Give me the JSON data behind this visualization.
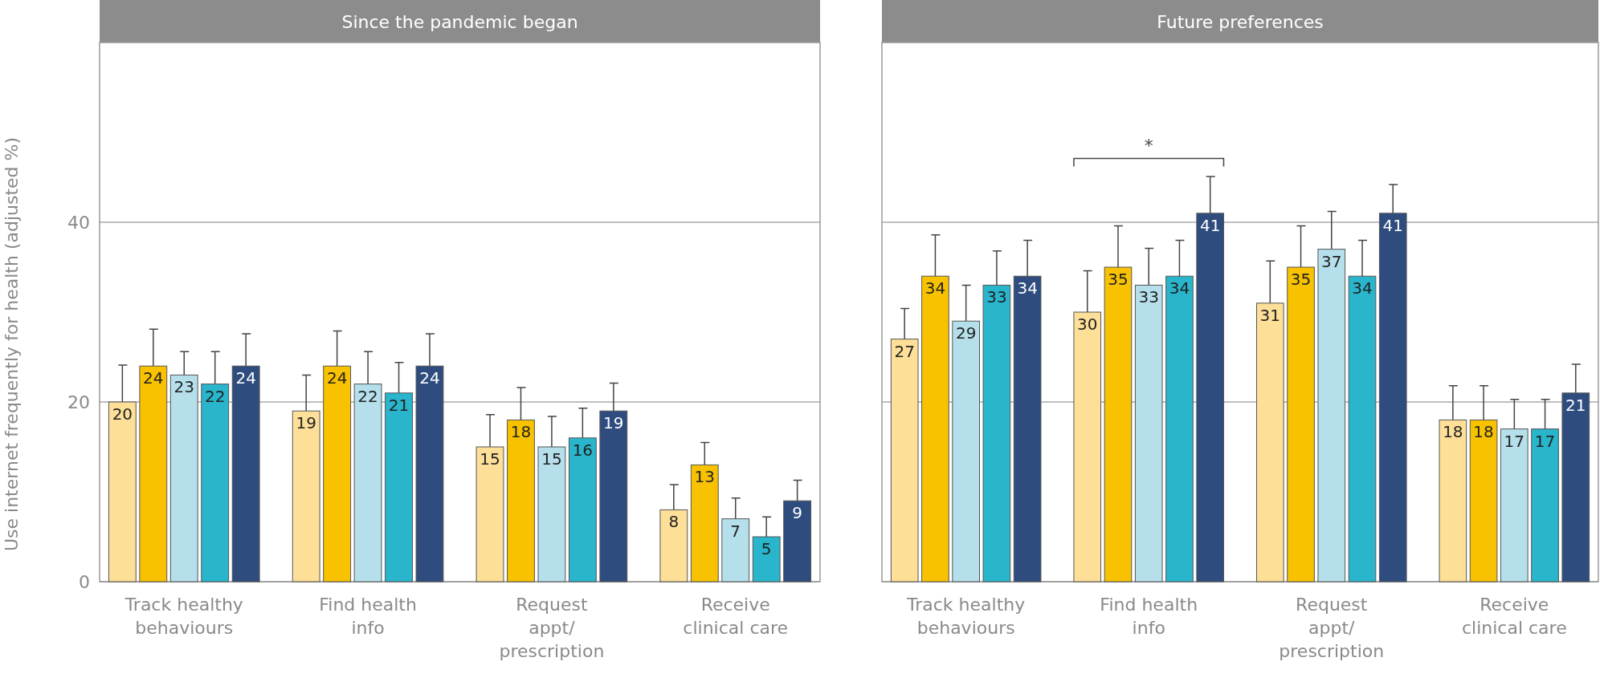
{
  "chart_data": [
    {
      "type": "bar",
      "title": "Since the pandemic began",
      "ylabel": "Use internet frequently for health (adjusted %)",
      "categories": [
        "Track healthy\nbehaviours",
        "Find health\ninfo",
        "Request\nappt/\nprescription",
        "Receive\nclinical care"
      ],
      "ylim": [
        0,
        60
      ],
      "yticks": [
        0,
        20,
        40
      ],
      "grid": "y",
      "data_labels": true,
      "series": [
        {
          "color": "#fddf98",
          "values": [
            20,
            19,
            15,
            8
          ],
          "errors": [
            [
              20,
              24.1
            ],
            [
              19,
              23.0
            ],
            [
              15,
              18.6
            ],
            [
              8,
              10.8
            ]
          ]
        },
        {
          "color": "#f8c200",
          "values": [
            24,
            24,
            18,
            13
          ],
          "errors": [
            [
              24,
              28.1
            ],
            [
              24,
              27.9
            ],
            [
              18,
              21.6
            ],
            [
              13,
              15.5
            ]
          ]
        },
        {
          "color": "#b5dfeb",
          "values": [
            23,
            22,
            15,
            7
          ],
          "errors": [
            [
              23,
              25.6
            ],
            [
              22,
              25.6
            ],
            [
              15,
              18.4
            ],
            [
              7,
              9.3
            ]
          ]
        },
        {
          "color": "#29b5cc",
          "values": [
            22,
            21,
            16,
            5
          ],
          "errors": [
            [
              22,
              25.6
            ],
            [
              21,
              24.4
            ],
            [
              16,
              19.3
            ],
            [
              5,
              7.2
            ]
          ]
        },
        {
          "color": "#2e4c7e",
          "values": [
            24,
            24,
            19,
            9
          ],
          "errors": [
            [
              24,
              27.6
            ],
            [
              24,
              27.6
            ],
            [
              19,
              22.1
            ],
            [
              9,
              11.3
            ]
          ]
        }
      ]
    },
    {
      "type": "bar",
      "title": "Future preferences",
      "categories": [
        "Track healthy\nbehaviours",
        "Find health\ninfo",
        "Request\nappt/\nprescription",
        "Receive\nclinical care"
      ],
      "ylim": [
        0,
        60
      ],
      "yticks": [
        0,
        20,
        40
      ],
      "grid": "y",
      "tick_labels": "x",
      "data_labels": true,
      "annotations": [
        "*"
      ],
      "series": [
        {
          "color": "#fddf98",
          "values": [
            27,
            30,
            31,
            18
          ],
          "errors": [
            [
              27,
              30.4
            ],
            [
              30,
              34.6
            ],
            [
              31,
              35.7
            ],
            [
              18,
              21.8
            ]
          ]
        },
        {
          "color": "#f8c200",
          "values": [
            34,
            35,
            35,
            18
          ],
          "errors": [
            [
              34,
              38.6
            ],
            [
              35,
              39.6
            ],
            [
              35,
              39.6
            ],
            [
              18,
              21.8
            ]
          ]
        },
        {
          "color": "#b5dfeb",
          "values": [
            29,
            33,
            37,
            17
          ],
          "errors": [
            [
              29,
              33.0
            ],
            [
              33,
              37.1
            ],
            [
              37,
              41.2
            ],
            [
              17,
              20.3
            ]
          ]
        },
        {
          "color": "#29b5cc",
          "values": [
            33,
            34,
            34,
            17
          ],
          "errors": [
            [
              33,
              36.8
            ],
            [
              34,
              38.0
            ],
            [
              34,
              38.0
            ],
            [
              17,
              20.3
            ]
          ]
        },
        {
          "color": "#2e4c7e",
          "values": [
            34,
            41,
            41,
            21
          ],
          "errors": [
            [
              34,
              38.0
            ],
            [
              41,
              45.1
            ],
            [
              41,
              44.2
            ],
            [
              21,
              24.2
            ]
          ]
        }
      ]
    }
  ]
}
